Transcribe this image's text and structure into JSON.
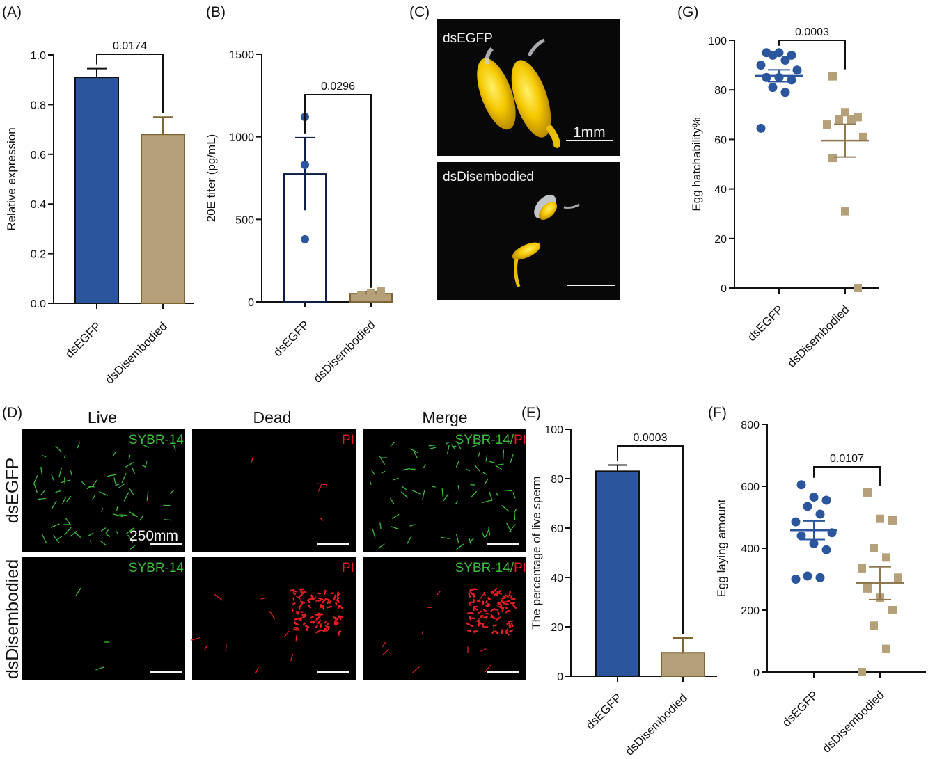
{
  "colors": {
    "blue": "#2b559c",
    "tan": "#b5a07a",
    "tan_edge": "#7d6432",
    "sybr": "#3bbb3b",
    "pi": "#e02020",
    "photo_label": "#f2f2f2"
  },
  "panel_labels": [
    "(A)",
    "(B)",
    "(C)",
    "(D)",
    "(E)",
    "(F)",
    "(G)"
  ],
  "panel_c": {
    "top_label": "dsEGFP",
    "bottom_label": "dsDisembodied",
    "scale_label": "1mm"
  },
  "panel_d": {
    "col_headers": [
      "Live",
      "Dead",
      "Merge"
    ],
    "row_headers": [
      "dsEGFP",
      "dsDisembodied"
    ],
    "stain_live": "SYBR-14",
    "stain_dead": "PI",
    "stain_merge_sep": "/",
    "scale_label": "250mm"
  },
  "chart_data": [
    {
      "id": "A",
      "type": "bar",
      "categories": [
        "dsEGFP",
        "dsDisembodied"
      ],
      "values": [
        0.91,
        0.68
      ],
      "error": [
        0.035,
        0.07
      ],
      "ylabel": "Relative expression",
      "ylim": [
        0,
        1.0
      ],
      "yticks": [
        "0.0",
        "0.2",
        "0.4",
        "0.6",
        "0.8",
        "1.0"
      ],
      "ytick_values": [
        0,
        0.2,
        0.4,
        0.6,
        0.8,
        1.0
      ],
      "pvalue": "0.0174"
    },
    {
      "id": "B",
      "type": "bar",
      "categories": [
        "dsEGFP",
        "dsDisembodied"
      ],
      "values": [
        775,
        50
      ],
      "error": [
        220,
        10
      ],
      "points": [
        [
          1120,
          830,
          380
        ],
        [
          40,
          55,
          65
        ]
      ],
      "ylabel": "20E titer (pg/mL)",
      "ylim": [
        0,
        1500
      ],
      "yticks": [
        "0",
        "500",
        "1000",
        "1500"
      ],
      "ytick_values": [
        0,
        500,
        1000,
        1500
      ],
      "pvalue": "0.0296"
    },
    {
      "id": "E",
      "type": "bar",
      "categories": [
        "dsEGFP",
        "dsDisembodied"
      ],
      "values": [
        83,
        9.5
      ],
      "error": [
        2.5,
        6
      ],
      "ylabel": "The percentage of live sperm",
      "ylim": [
        0,
        100
      ],
      "yticks": [
        "0",
        "20",
        "40",
        "60",
        "80",
        "100"
      ],
      "ytick_values": [
        0,
        20,
        40,
        60,
        80,
        100
      ],
      "pvalue": "0.0003"
    },
    {
      "id": "F",
      "type": "scatter",
      "categories": [
        "dsEGFP",
        "dsDisembodied"
      ],
      "points": [
        [
          605,
          565,
          555,
          535,
          510,
          485,
          450,
          440,
          415,
          395,
          310,
          305,
          300
        ],
        [
          580,
          495,
          490,
          400,
          370,
          335,
          305,
          270,
          240,
          200,
          150,
          75,
          0
        ]
      ],
      "mean": [
        458,
        287
      ],
      "sem": [
        30,
        53
      ],
      "ylabel": "Egg laying amount",
      "ylim": [
        0,
        800
      ],
      "yticks": [
        "0",
        "200",
        "400",
        "600",
        "800"
      ],
      "ytick_values": [
        0,
        200,
        400,
        600,
        800
      ],
      "pvalue": "0.0107"
    },
    {
      "id": "G",
      "type": "scatter",
      "categories": [
        "dsEGFP",
        "dsDisembodied"
      ],
      "points": [
        [
          95,
          95,
          94,
          94,
          92,
          90,
          88,
          85,
          85,
          84,
          81,
          79,
          64.5
        ],
        [
          85.5,
          71,
          69,
          68,
          68,
          66,
          61,
          52.5,
          31,
          0
        ]
      ],
      "mean": [
        85.7,
        59.5
      ],
      "sem": [
        2.4,
        6.6
      ],
      "ylabel": "Egg hatchability%",
      "ylim": [
        0,
        100
      ],
      "yticks": [
        "0",
        "20",
        "40",
        "60",
        "80",
        "100"
      ],
      "ytick_values": [
        0,
        20,
        40,
        60,
        80,
        100
      ],
      "pvalue": "0.0003"
    }
  ]
}
